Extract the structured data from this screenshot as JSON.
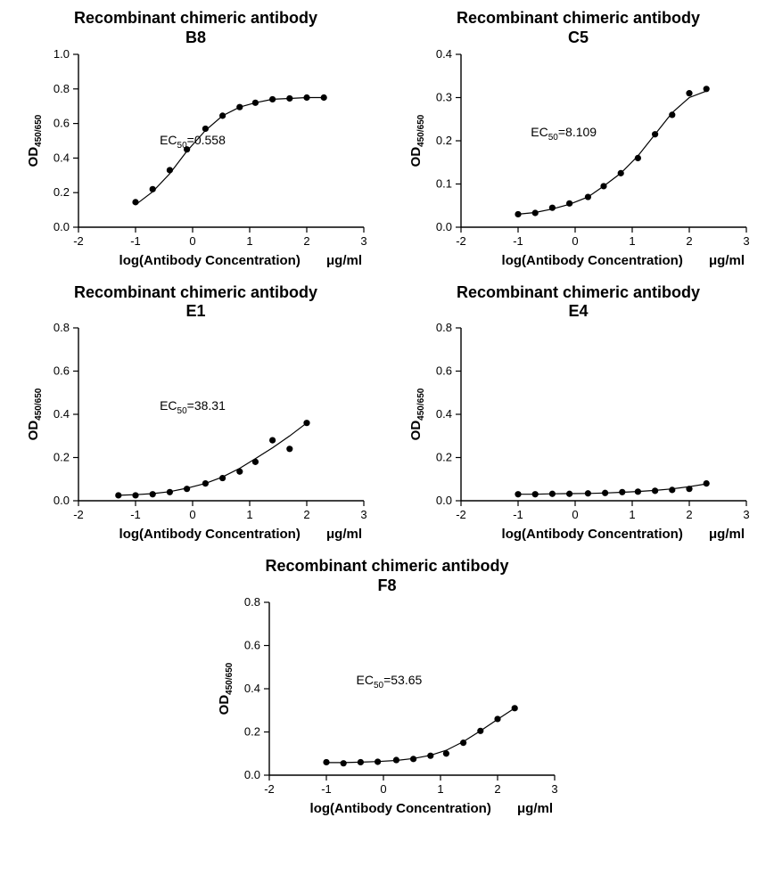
{
  "global": {
    "title_prefix": "Recombinant chimeric antibody",
    "xlabel_main": "log(Antibody Concentration)",
    "xlabel_unit": "μg/ml",
    "ylabel_main": "OD",
    "ylabel_sub": "450/650",
    "marker_color": "#000000",
    "line_color": "#000000",
    "background_color": "#ffffff",
    "title_fontsize": 18,
    "label_fontsize": 15,
    "tick_fontsize": 13,
    "marker_radius": 3.6,
    "line_width": 1.2
  },
  "panels": [
    {
      "id": "B8",
      "ec50_label": "EC",
      "ec50_sub": "50",
      "ec50_value": "=0.558",
      "ec50_xy": [
        0.0,
        0.48
      ],
      "xlim": [
        -2,
        3
      ],
      "xtick_step": 1,
      "ylim": [
        0,
        1.0
      ],
      "ytick_step": 0.2,
      "points": [
        [
          -1.0,
          0.145
        ],
        [
          -0.7,
          0.22
        ],
        [
          -0.4,
          0.33
        ],
        [
          -0.1,
          0.45
        ],
        [
          0.225,
          0.57
        ],
        [
          0.525,
          0.645
        ],
        [
          0.825,
          0.695
        ],
        [
          1.1,
          0.72
        ],
        [
          1.4,
          0.74
        ],
        [
          1.7,
          0.745
        ],
        [
          2.0,
          0.75
        ],
        [
          2.3,
          0.75
        ]
      ],
      "curve": [
        [
          -1.0,
          0.13
        ],
        [
          -0.7,
          0.205
        ],
        [
          -0.4,
          0.31
        ],
        [
          -0.1,
          0.44
        ],
        [
          0.225,
          0.56
        ],
        [
          0.525,
          0.645
        ],
        [
          0.825,
          0.695
        ],
        [
          1.1,
          0.72
        ],
        [
          1.4,
          0.74
        ],
        [
          1.7,
          0.745
        ],
        [
          2.0,
          0.75
        ],
        [
          2.3,
          0.75
        ]
      ]
    },
    {
      "id": "C5",
      "ec50_label": "EC",
      "ec50_sub": "50",
      "ec50_value": "=8.109",
      "ec50_xy": [
        -0.2,
        0.21
      ],
      "xlim": [
        -2,
        3
      ],
      "xtick_step": 1,
      "ylim": [
        0,
        0.4
      ],
      "ytick_step": 0.1,
      "points": [
        [
          -1.0,
          0.03
        ],
        [
          -0.7,
          0.033
        ],
        [
          -0.4,
          0.045
        ],
        [
          -0.1,
          0.055
        ],
        [
          0.225,
          0.07
        ],
        [
          0.5,
          0.095
        ],
        [
          0.8,
          0.125
        ],
        [
          1.1,
          0.16
        ],
        [
          1.4,
          0.215
        ],
        [
          1.7,
          0.26
        ],
        [
          2.0,
          0.31
        ],
        [
          2.3,
          0.32
        ]
      ],
      "curve": [
        [
          -1.0,
          0.03
        ],
        [
          -0.7,
          0.034
        ],
        [
          -0.4,
          0.042
        ],
        [
          -0.1,
          0.053
        ],
        [
          0.225,
          0.07
        ],
        [
          0.5,
          0.095
        ],
        [
          0.8,
          0.125
        ],
        [
          1.1,
          0.165
        ],
        [
          1.4,
          0.215
        ],
        [
          1.7,
          0.265
        ],
        [
          2.0,
          0.3
        ],
        [
          2.3,
          0.315
        ]
      ]
    },
    {
      "id": "E1",
      "ec50_label": "EC",
      "ec50_sub": "50",
      "ec50_value": "=38.31",
      "ec50_xy": [
        0.0,
        0.42
      ],
      "xlim": [
        -2,
        3
      ],
      "xtick_step": 1,
      "ylim": [
        0,
        0.8
      ],
      "ytick_step": 0.2,
      "points": [
        [
          -1.3,
          0.025
        ],
        [
          -1.0,
          0.025
        ],
        [
          -0.7,
          0.03
        ],
        [
          -0.4,
          0.04
        ],
        [
          -0.1,
          0.055
        ],
        [
          0.225,
          0.08
        ],
        [
          0.525,
          0.105
        ],
        [
          0.825,
          0.135
        ],
        [
          1.1,
          0.18
        ],
        [
          1.4,
          0.28
        ],
        [
          1.7,
          0.24
        ],
        [
          2.0,
          0.36
        ]
      ],
      "curve": [
        [
          -1.3,
          0.025
        ],
        [
          -1.0,
          0.028
        ],
        [
          -0.7,
          0.033
        ],
        [
          -0.4,
          0.042
        ],
        [
          -0.1,
          0.058
        ],
        [
          0.225,
          0.08
        ],
        [
          0.525,
          0.11
        ],
        [
          0.825,
          0.15
        ],
        [
          1.1,
          0.195
        ],
        [
          1.4,
          0.245
        ],
        [
          1.7,
          0.3
        ],
        [
          2.0,
          0.36
        ]
      ]
    },
    {
      "id": "E4",
      "ec50_label": null,
      "ec50_sub": null,
      "ec50_value": null,
      "ec50_xy": null,
      "xlim": [
        -2,
        3
      ],
      "xtick_step": 1,
      "ylim": [
        0,
        0.8
      ],
      "ytick_step": 0.2,
      "points": [
        [
          -1.0,
          0.03
        ],
        [
          -0.7,
          0.03
        ],
        [
          -0.4,
          0.032
        ],
        [
          -0.1,
          0.032
        ],
        [
          0.225,
          0.034
        ],
        [
          0.525,
          0.036
        ],
        [
          0.825,
          0.04
        ],
        [
          1.1,
          0.042
        ],
        [
          1.4,
          0.046
        ],
        [
          1.7,
          0.05
        ],
        [
          2.0,
          0.055
        ],
        [
          2.3,
          0.08
        ]
      ],
      "curve": [
        [
          -1.0,
          0.03
        ],
        [
          -0.7,
          0.03
        ],
        [
          -0.4,
          0.032
        ],
        [
          -0.1,
          0.033
        ],
        [
          0.225,
          0.034
        ],
        [
          0.525,
          0.036
        ],
        [
          0.825,
          0.039
        ],
        [
          1.1,
          0.043
        ],
        [
          1.4,
          0.048
        ],
        [
          1.7,
          0.055
        ],
        [
          2.0,
          0.065
        ],
        [
          2.3,
          0.078
        ]
      ]
    },
    {
      "id": "F8",
      "ec50_label": "EC",
      "ec50_sub": "50",
      "ec50_value": "=53.65",
      "ec50_xy": [
        0.1,
        0.42
      ],
      "xlim": [
        -2,
        3
      ],
      "xtick_step": 1,
      "ylim": [
        0,
        0.8
      ],
      "ytick_step": 0.2,
      "points": [
        [
          -1.0,
          0.06
        ],
        [
          -0.7,
          0.055
        ],
        [
          -0.4,
          0.06
        ],
        [
          -0.1,
          0.062
        ],
        [
          0.225,
          0.07
        ],
        [
          0.525,
          0.075
        ],
        [
          0.825,
          0.09
        ],
        [
          1.1,
          0.1
        ],
        [
          1.4,
          0.15
        ],
        [
          1.7,
          0.205
        ],
        [
          2.0,
          0.26
        ],
        [
          2.3,
          0.31
        ]
      ],
      "curve": [
        [
          -1.0,
          0.058
        ],
        [
          -0.7,
          0.058
        ],
        [
          -0.4,
          0.06
        ],
        [
          -0.1,
          0.063
        ],
        [
          0.225,
          0.068
        ],
        [
          0.525,
          0.077
        ],
        [
          0.825,
          0.092
        ],
        [
          1.1,
          0.115
        ],
        [
          1.4,
          0.155
        ],
        [
          1.7,
          0.205
        ],
        [
          2.0,
          0.258
        ],
        [
          2.3,
          0.31
        ]
      ]
    }
  ]
}
